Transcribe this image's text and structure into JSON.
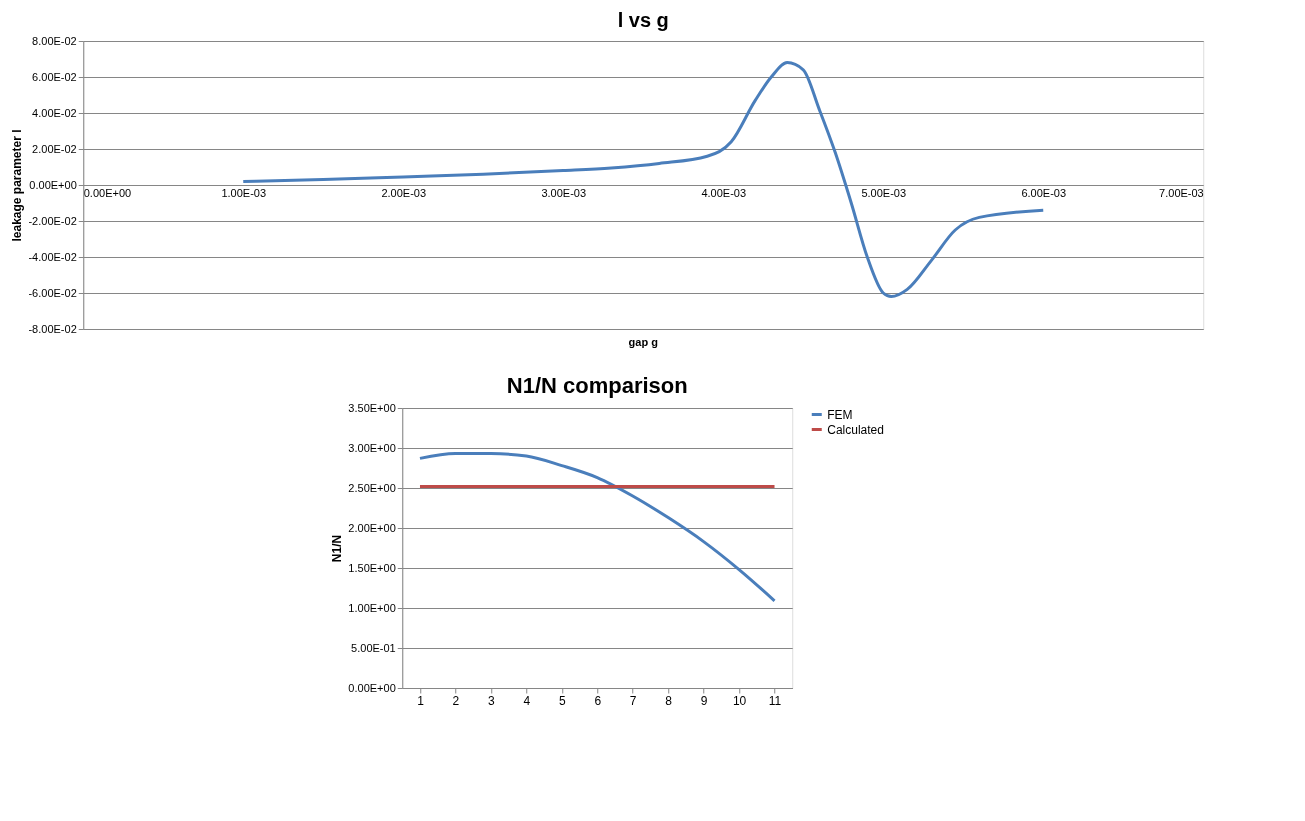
{
  "chart_data": [
    {
      "type": "line",
      "title": "l vs g",
      "xlabel": "gap g",
      "ylabel": "leakage  parameter l",
      "grid": "y",
      "legend": false,
      "marker": "none",
      "line_style": "solid",
      "xlim": [
        0,
        0.007
      ],
      "ylim": [
        -0.08,
        0.08
      ],
      "xticks": [
        {
          "value": 0,
          "label": "0.00E+00"
        },
        {
          "value": 0.001,
          "label": "1.00E-03"
        },
        {
          "value": 0.002,
          "label": "2.00E-03"
        },
        {
          "value": 0.003,
          "label": "3.00E-03"
        },
        {
          "value": 0.004,
          "label": "4.00E-03"
        },
        {
          "value": 0.005,
          "label": "5.00E-03"
        },
        {
          "value": 0.006,
          "label": "6.00E-03"
        },
        {
          "value": 0.007,
          "label": "7.00E-03"
        }
      ],
      "yticks": [
        {
          "value": -0.08,
          "label": "-8.00E-02"
        },
        {
          "value": -0.06,
          "label": "-6.00E-02"
        },
        {
          "value": -0.04,
          "label": "-4.00E-02"
        },
        {
          "value": -0.02,
          "label": "-2.00E-02"
        },
        {
          "value": 0,
          "label": "0.00E+00"
        },
        {
          "value": 0.02,
          "label": "2.00E-02"
        },
        {
          "value": 0.04,
          "label": "4.00E-02"
        },
        {
          "value": 0.06,
          "label": "6.00E-02"
        },
        {
          "value": 0.08,
          "label": "8.00E-02"
        }
      ],
      "x": [
        0.001,
        0.0015,
        0.002,
        0.0025,
        0.003,
        0.0033,
        0.0036,
        0.0039,
        0.00405,
        0.0042,
        0.0043,
        0.0044,
        0.0045,
        0.0046,
        0.0047,
        0.0048,
        0.0049,
        0.005,
        0.00505,
        0.00515,
        0.0053,
        0.00545,
        0.0056,
        0.006
      ],
      "series": [
        {
          "color": "#4a7ebb",
          "values": [
            0.002,
            0.003,
            0.0045,
            0.006,
            0.008,
            0.0095,
            0.012,
            0.016,
            0.024,
            0.047,
            0.06,
            0.068,
            0.064,
            0.042,
            0.018,
            -0.01,
            -0.04,
            -0.06,
            -0.062,
            -0.058,
            -0.042,
            -0.025,
            -0.018,
            -0.014
          ]
        }
      ]
    },
    {
      "type": "line",
      "title": "N1/N comparison",
      "ylabel": "N1/N",
      "grid": "y",
      "legend": "right",
      "marker": "none",
      "line_style": "solid",
      "categories": [
        "1",
        "2",
        "3",
        "4",
        "5",
        "6",
        "7",
        "8",
        "9",
        "10",
        "11"
      ],
      "ylim": [
        0,
        3.5
      ],
      "yticks": [
        {
          "value": 0,
          "label": "0.00E+00"
        },
        {
          "value": 0.5,
          "label": "5.00E-01"
        },
        {
          "value": 1,
          "label": "1.00E+00"
        },
        {
          "value": 1.5,
          "label": "1.50E+00"
        },
        {
          "value": 2,
          "label": "2.00E+00"
        },
        {
          "value": 2.5,
          "label": "2.50E+00"
        },
        {
          "value": 3,
          "label": "3.00E+00"
        },
        {
          "value": 3.5,
          "label": "3.50E+00"
        }
      ],
      "series": [
        {
          "name": "FEM",
          "color": "#4a7ebb",
          "values": [
            2.87,
            2.93,
            2.93,
            2.9,
            2.78,
            2.63,
            2.4,
            2.13,
            1.83,
            1.48,
            1.09
          ]
        },
        {
          "name": "Calculated",
          "color": "#be4b48",
          "values": [
            2.52,
            2.52,
            2.52,
            2.52,
            2.52,
            2.52,
            2.52,
            2.52,
            2.52,
            2.52,
            2.52
          ]
        }
      ]
    }
  ]
}
